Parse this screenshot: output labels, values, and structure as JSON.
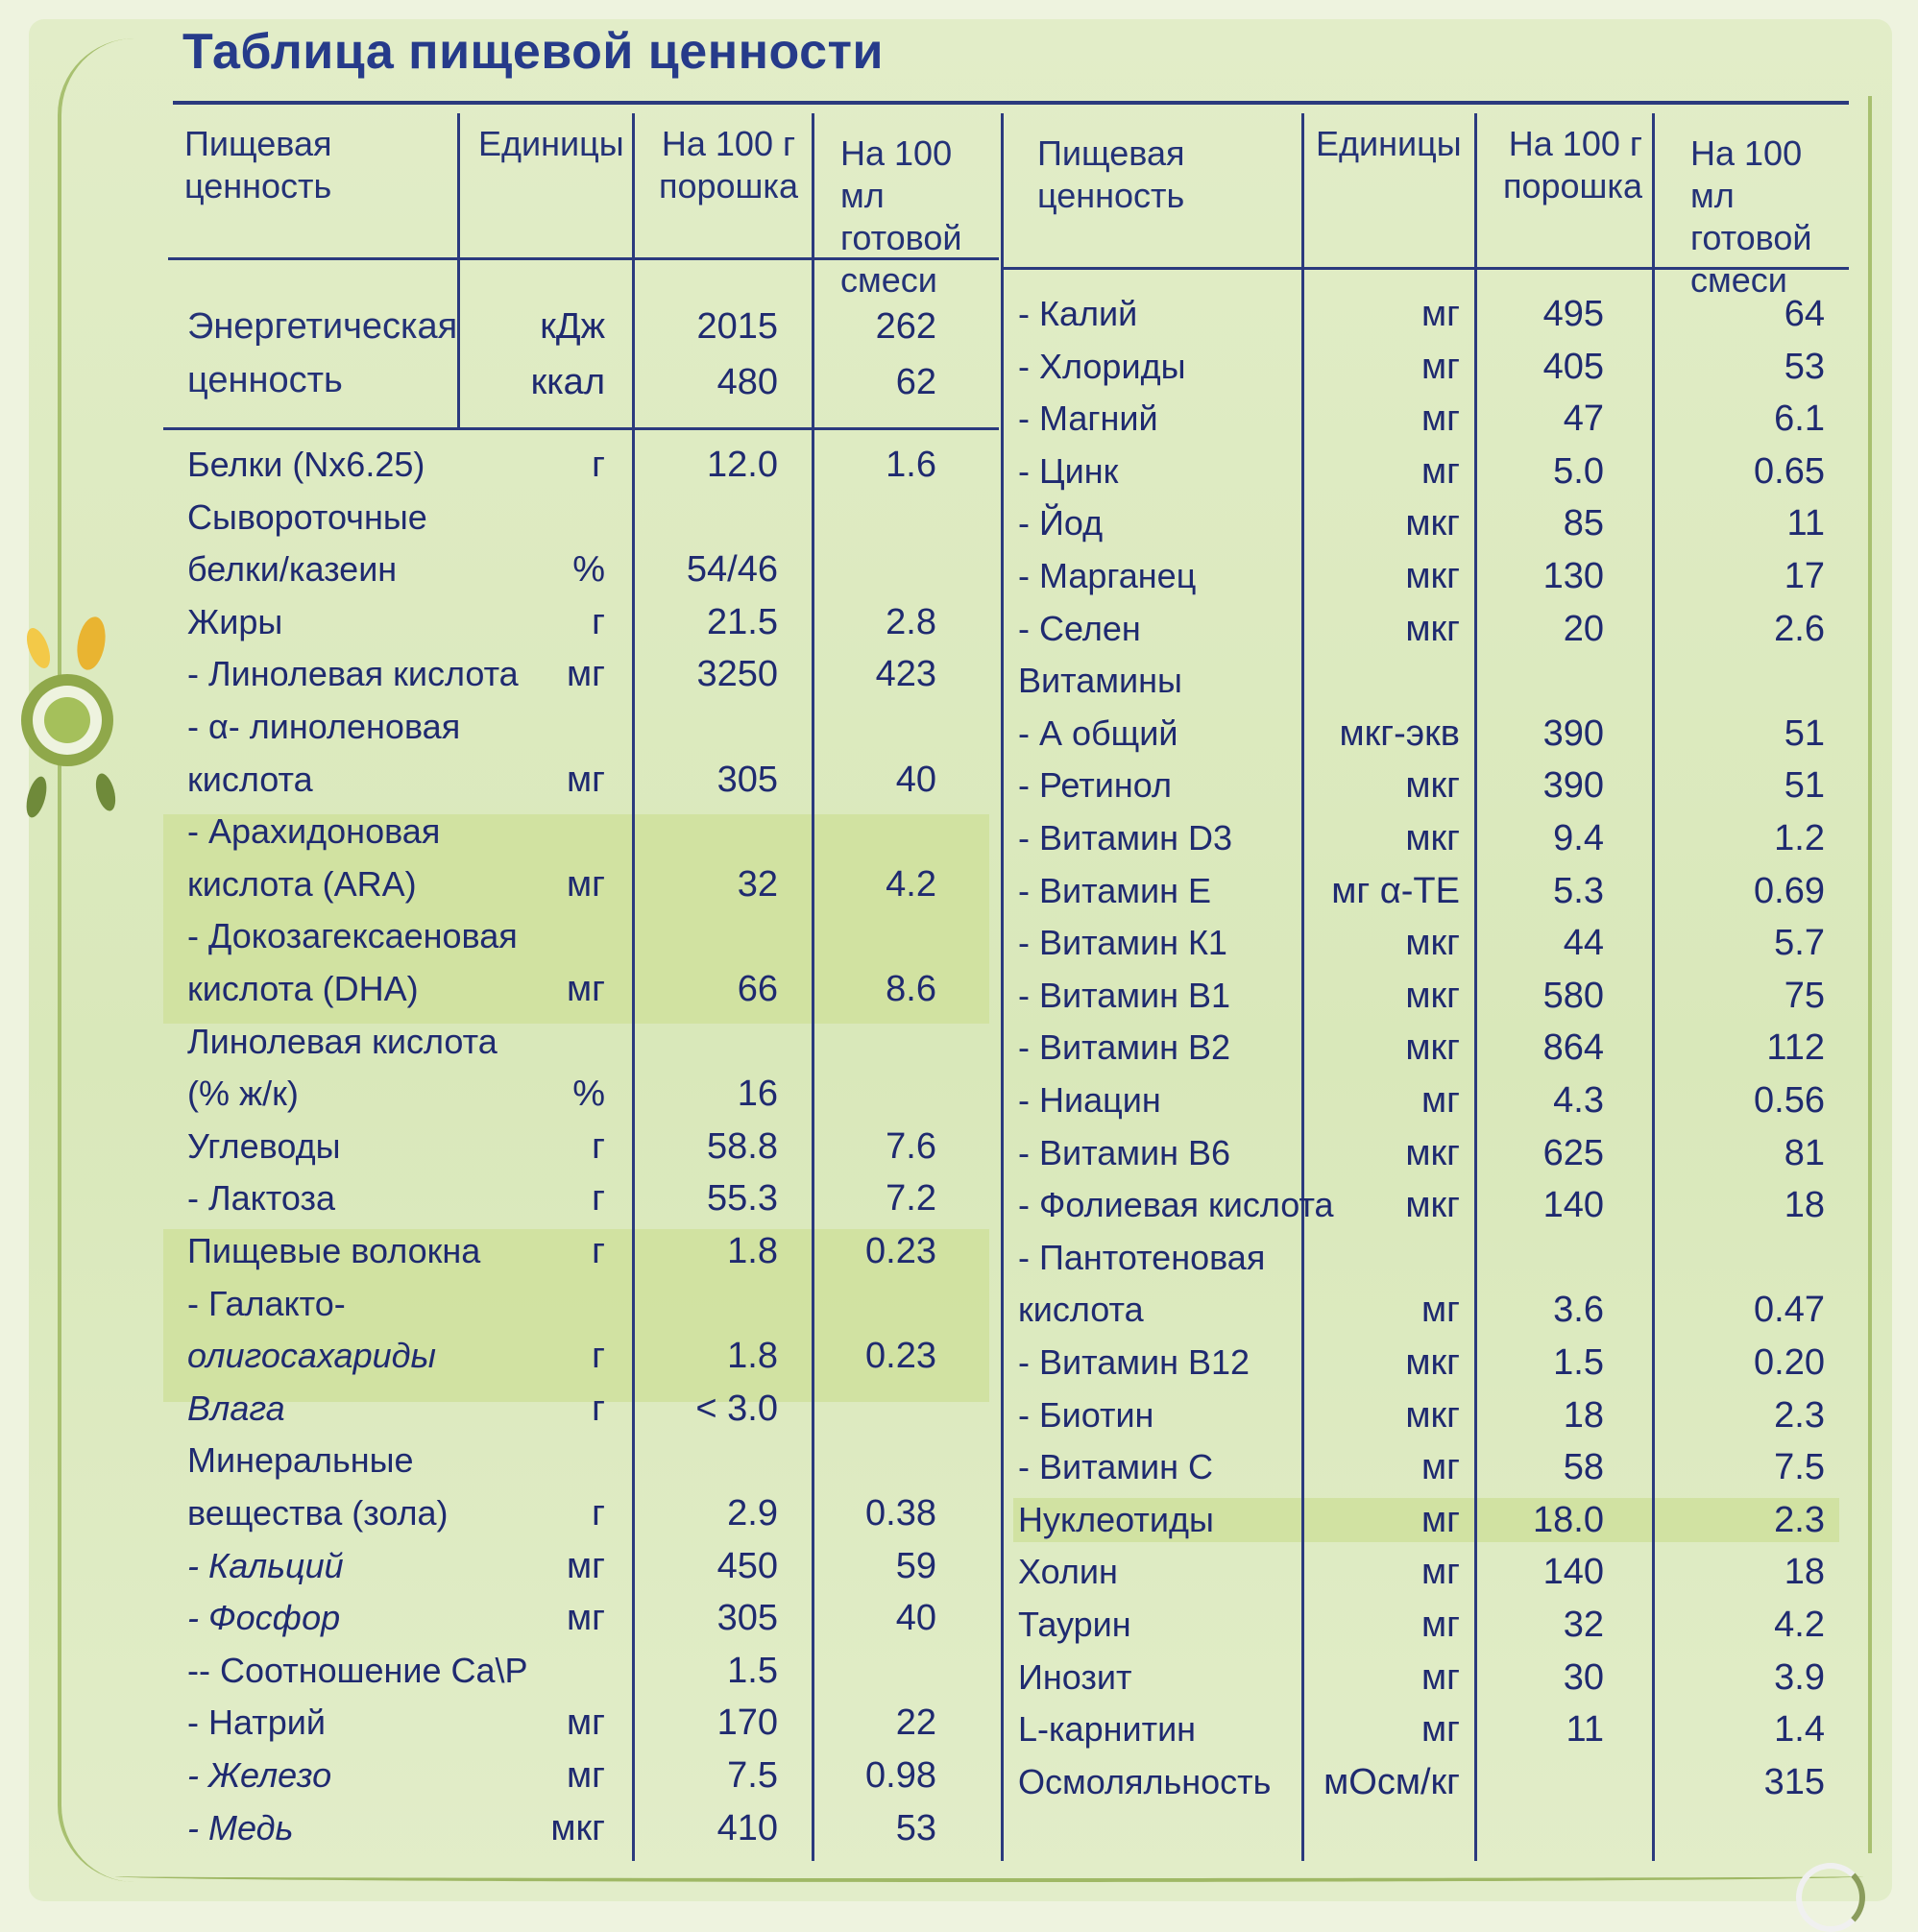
{
  "title": "Таблица пищевой ценности",
  "headers": {
    "nutrient": "Пищевая\nценность",
    "units": "Единицы",
    "per100g": "На 100 г\nпорошка",
    "per100ml": "На 100 мл\nготовой\nсмеси"
  },
  "energy": {
    "label": "Энергетическая\nценность",
    "rows": [
      {
        "unit": "кДж",
        "per100g": "2015",
        "per100ml": "262"
      },
      {
        "unit": "ккал",
        "per100g": "480",
        "per100ml": "62"
      }
    ]
  },
  "left_rows": [
    {
      "name": "Белки (Nx6.25)",
      "unit": "г",
      "per100g": "12.0",
      "per100ml": "1.6"
    },
    {
      "name": "Сывороточные",
      "unit": "",
      "per100g": "",
      "per100ml": ""
    },
    {
      "name": "белки/казеин",
      "unit": "%",
      "per100g": "54/46",
      "per100ml": ""
    },
    {
      "name": "Жиры",
      "unit": "г",
      "per100g": "21.5",
      "per100ml": "2.8"
    },
    {
      "name": "- Линолевая кислота",
      "unit": "мг",
      "per100g": "3250",
      "per100ml": "423"
    },
    {
      "name": "- α- линоленовая",
      "unit": "",
      "per100g": "",
      "per100ml": ""
    },
    {
      "name": "кислота",
      "unit": "мг",
      "per100g": "305",
      "per100ml": "40"
    },
    {
      "name": "- Арахидоновая",
      "unit": "",
      "per100g": "",
      "per100ml": ""
    },
    {
      "name": "кислота (ARA)",
      "unit": "мг",
      "per100g": "32",
      "per100ml": "4.2"
    },
    {
      "name": "- Докозагексаеновая",
      "unit": "",
      "per100g": "",
      "per100ml": ""
    },
    {
      "name": "кислота (DHA)",
      "unit": "мг",
      "per100g": "66",
      "per100ml": "8.6"
    },
    {
      "name": "Линолевая кислота",
      "unit": "",
      "per100g": "",
      "per100ml": ""
    },
    {
      "name": "(% ж/к)",
      "unit": "%",
      "per100g": "16",
      "per100ml": ""
    },
    {
      "name": "Углеводы",
      "unit": "г",
      "per100g": "58.8",
      "per100ml": "7.6"
    },
    {
      "name": "- Лактоза",
      "unit": "г",
      "per100g": "55.3",
      "per100ml": "7.2"
    },
    {
      "name": "Пищевые волокна",
      "unit": "г",
      "per100g": "1.8",
      "per100ml": "0.23"
    },
    {
      "name": "- Галакто-",
      "unit": "",
      "per100g": "",
      "per100ml": ""
    },
    {
      "name": "олигосахариды",
      "unit": "г",
      "per100g": "1.8",
      "per100ml": "0.23"
    },
    {
      "name": "Влага",
      "unit": "г",
      "per100g": "< 3.0",
      "per100ml": ""
    },
    {
      "name": "Минеральные",
      "unit": "",
      "per100g": "",
      "per100ml": ""
    },
    {
      "name": "вещества (зола)",
      "unit": "г",
      "per100g": "2.9",
      "per100ml": "0.38"
    },
    {
      "name": "- Кальций",
      "unit": "мг",
      "per100g": "450",
      "per100ml": "59"
    },
    {
      "name": "- Фосфор",
      "unit": "мг",
      "per100g": "305",
      "per100ml": "40"
    },
    {
      "name": "-- Соотношение Ca\\P",
      "unit": "",
      "per100g": "1.5",
      "per100ml": ""
    },
    {
      "name": "- Натрий",
      "unit": "мг",
      "per100g": "170",
      "per100ml": "22"
    },
    {
      "name": "- Железо",
      "unit": "мг",
      "per100g": "7.5",
      "per100ml": "0.98"
    },
    {
      "name": "- Медь",
      "unit": "мкг",
      "per100g": "410",
      "per100ml": "53"
    }
  ],
  "right_rows": [
    {
      "name": "- Калий",
      "unit": "мг",
      "per100g": "495",
      "per100ml": "64"
    },
    {
      "name": "- Хлориды",
      "unit": "мг",
      "per100g": "405",
      "per100ml": "53"
    },
    {
      "name": "- Магний",
      "unit": "мг",
      "per100g": "47",
      "per100ml": "6.1"
    },
    {
      "name": "- Цинк",
      "unit": "мг",
      "per100g": "5.0",
      "per100ml": "0.65"
    },
    {
      "name": "- Йод",
      "unit": "мкг",
      "per100g": "85",
      "per100ml": "11"
    },
    {
      "name": "- Марганец",
      "unit": "мкг",
      "per100g": "130",
      "per100ml": "17"
    },
    {
      "name": "- Селен",
      "unit": "мкг",
      "per100g": "20",
      "per100ml": "2.6"
    },
    {
      "name": "Витамины",
      "unit": "",
      "per100g": "",
      "per100ml": ""
    },
    {
      "name": "- А общий",
      "unit": "мкг-экв",
      "per100g": "390",
      "per100ml": "51"
    },
    {
      "name": "- Ретинол",
      "unit": "мкг",
      "per100g": "390",
      "per100ml": "51"
    },
    {
      "name": "- Витамин D3",
      "unit": "мкг",
      "per100g": "9.4",
      "per100ml": "1.2"
    },
    {
      "name": "- Витамин Е",
      "unit": "мг α-ТЕ",
      "per100g": "5.3",
      "per100ml": "0.69"
    },
    {
      "name": "- Витамин К1",
      "unit": "мкг",
      "per100g": "44",
      "per100ml": "5.7"
    },
    {
      "name": "- Витамин В1",
      "unit": "мкг",
      "per100g": "580",
      "per100ml": "75"
    },
    {
      "name": "- Витамин В2",
      "unit": "мкг",
      "per100g": "864",
      "per100ml": "112"
    },
    {
      "name": "- Ниацин",
      "unit": "мг",
      "per100g": "4.3",
      "per100ml": "0.56"
    },
    {
      "name": "- Витамин В6",
      "unit": "мкг",
      "per100g": "625",
      "per100ml": "81"
    },
    {
      "name": "- Фолиевая кислота",
      "unit": "мкг",
      "per100g": "140",
      "per100ml": "18"
    },
    {
      "name": "- Пантотеновая",
      "unit": "",
      "per100g": "",
      "per100ml": ""
    },
    {
      "name": "кислота",
      "unit": "мг",
      "per100g": "3.6",
      "per100ml": "0.47"
    },
    {
      "name": "- Витамин В12",
      "unit": "мкг",
      "per100g": "1.5",
      "per100ml": "0.20"
    },
    {
      "name": "- Биотин",
      "unit": "мкг",
      "per100g": "18",
      "per100ml": "2.3"
    },
    {
      "name": "- Витамин С",
      "unit": "мг",
      "per100g": "58",
      "per100ml": "7.5"
    },
    {
      "name": "Нуклеотиды",
      "unit": "мг",
      "per100g": "18.0",
      "per100ml": "2.3"
    },
    {
      "name": "Холин",
      "unit": "мг",
      "per100g": "140",
      "per100ml": "18"
    },
    {
      "name": "Таурин",
      "unit": "мг",
      "per100g": "32",
      "per100ml": "4.2"
    },
    {
      "name": "Инозит",
      "unit": "мг",
      "per100g": "30",
      "per100ml": "3.9"
    },
    {
      "name": "L-карнитин",
      "unit": "мг",
      "per100g": "11",
      "per100ml": "1.4"
    },
    {
      "name": "Осмоляльность",
      "unit": "мОсм/кг",
      "per100g": "",
      "per100ml": "315"
    }
  ],
  "colors": {
    "text": "#1f2a70",
    "title": "#263b8a",
    "background": "#dce9bf",
    "highlight": "#cfe19c",
    "rule": "#2b3a7e"
  }
}
